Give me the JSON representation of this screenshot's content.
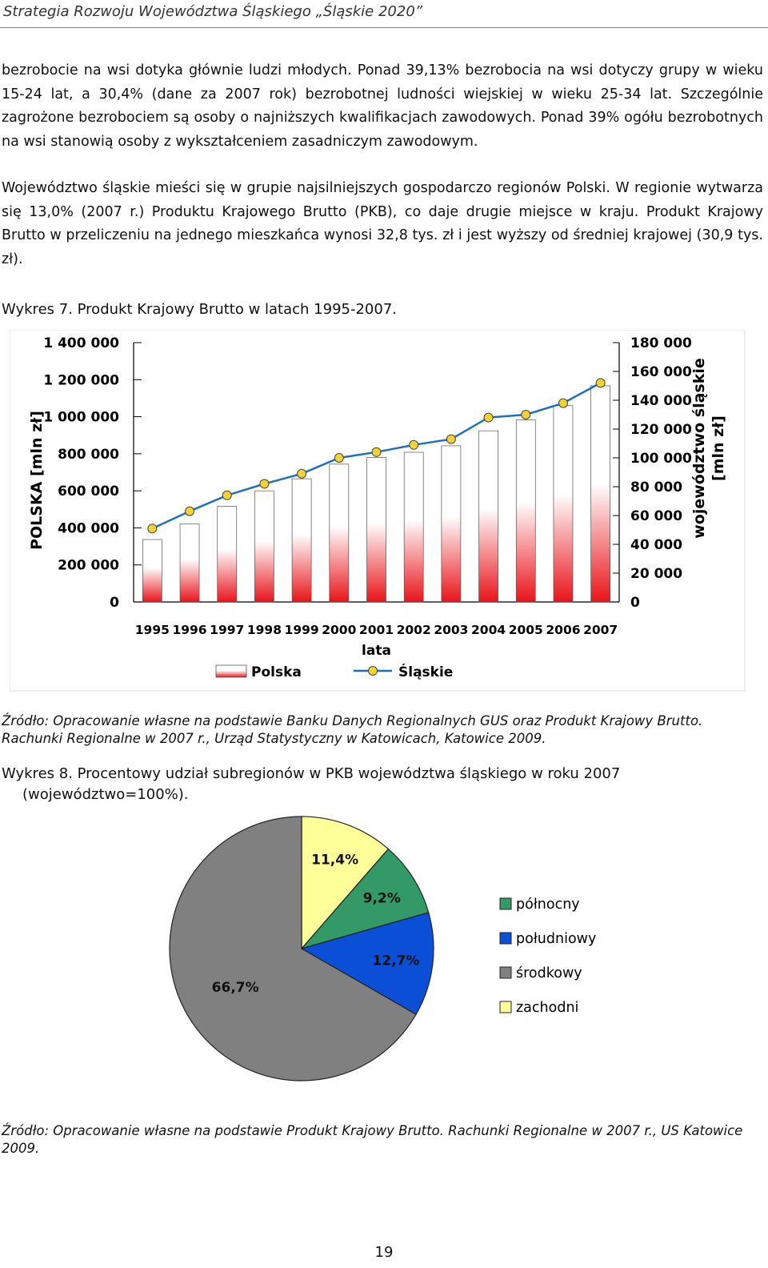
{
  "header": {
    "title": "Strategia Rozwoju Województwa Śląskiego „Śląskie 2020”"
  },
  "paragraphs": [
    "bezrobocie na wsi dotyka głównie ludzi młodych. Ponad 39,13% bezrobocia na wsi dotyczy grupy w wieku 15-24 lat, a 30,4% (dane za 2007 rok) bezrobotnej ludności wiejskiej w wieku 25-34 lat. Szczególnie zagrożone bezrobociem są osoby o najniższych kwalifikacjach zawodowych. Ponad 39% ogółu bezrobotnych na wsi stanowią osoby z wykształceniem zasadniczym zawodowym.",
    "Województwo śląskie mieści się w grupie najsilniejszych gospodarczo regionów Polski. W regionie wytwarza się 13,0% (2007 r.) Produktu Krajowego Brutto (PKB), co daje drugie miejsce w kraju. Produkt Krajowy Brutto w przeliczeniu na jednego mieszkańca wynosi 32,8 tys. zł i jest wyższy od średniej krajowej (30,9 tys. zł)."
  ],
  "figure7": {
    "caption": "Wykres 7. Produkt Krajowy Brutto w latach 1995-2007."
  },
  "source7": "Źródło: Opracowanie własne na podstawie Banku Danych Regionalnych GUS oraz Produkt Krajowy Brutto. Rachunki Regionalne w 2007 r., Urząd Statystyczny w Katowicach, Katowice 2009.",
  "figure8": {
    "caption_line1": "Wykres 8. Procentowy udział subregionów w PKB województwa śląskiego w roku 2007",
    "caption_line2": "(województwo=100%)."
  },
  "source8": "Źródło: Opracowanie własne na podstawie Produkt Krajowy Brutto. Rachunki Regionalne w 2007 r., US Katowice 2009.",
  "page_number": "19",
  "chart_data": [
    {
      "type": "bar",
      "title": "",
      "xlabel": "lata",
      "ylabel": "POLSKA [mln zł]",
      "y2label_line1": "województwo śląskie",
      "y2label_line2": "[mln zł]",
      "categories": [
        "1995",
        "1996",
        "1997",
        "1998",
        "1999",
        "2000",
        "2001",
        "2002",
        "2003",
        "2004",
        "2005",
        "2006",
        "2007"
      ],
      "ylim": [
        0,
        1400000
      ],
      "y2lim": [
        0,
        180000
      ],
      "yticks": [
        "0",
        "200 000",
        "400 000",
        "600 000",
        "800 000",
        "1 000 000",
        "1 200 000",
        "1 400 000"
      ],
      "y2ticks": [
        "0",
        "20 000",
        "40 000",
        "60 000",
        "80 000",
        "100 000",
        "120 000",
        "140 000",
        "160 000",
        "180 000"
      ],
      "series": [
        {
          "name": "Polska",
          "kind": "bar",
          "axis": "left",
          "color": "#e8141a",
          "values": [
            337000,
            422000,
            517000,
            600000,
            665000,
            744000,
            780000,
            808000,
            843000,
            924000,
            983000,
            1060000,
            1167000
          ]
        },
        {
          "name": "Śląskie",
          "kind": "line",
          "axis": "right",
          "color": "#1f6fc0",
          "marker_color": "#f2d335",
          "values": [
            51000,
            63000,
            74000,
            82000,
            89000,
            100000,
            104000,
            109000,
            113000,
            128000,
            130000,
            138000,
            152000
          ]
        }
      ],
      "legend": "bottom"
    },
    {
      "type": "pie",
      "title": "",
      "slices": [
        {
          "label": "północny",
          "value": 9.2,
          "display": "9,2%",
          "color": "#339966"
        },
        {
          "label": "południowy",
          "value": 12.7,
          "display": "12,7%",
          "color": "#0a4fd6"
        },
        {
          "label": "środkowy",
          "value": 66.7,
          "display": "66,7%",
          "color": "#808080"
        },
        {
          "label": "zachodni",
          "value": 11.4,
          "display": "11,4%",
          "color": "#ffff99"
        }
      ],
      "legend": "right"
    }
  ]
}
